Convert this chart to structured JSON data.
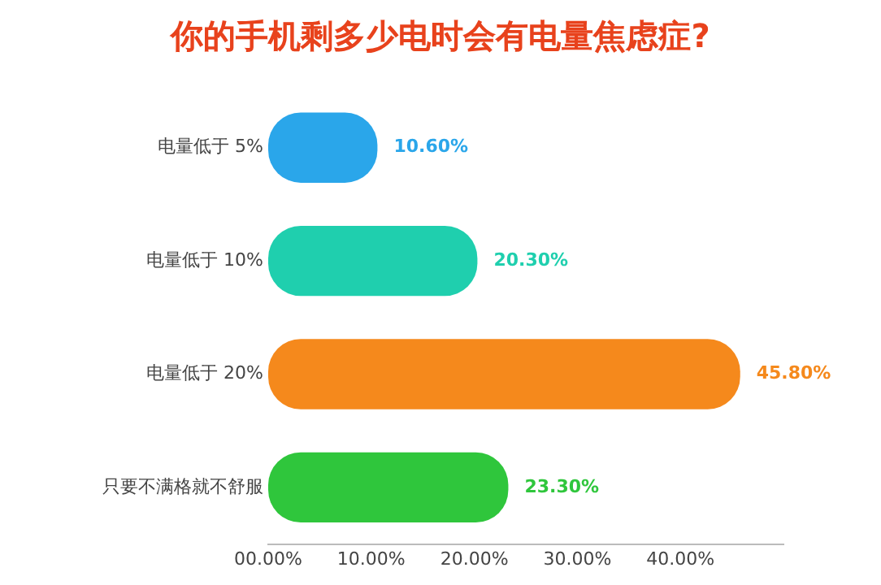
{
  "chart_data": {
    "type": "bar",
    "orientation": "horizontal",
    "title": "你的手机剩多少电时会有电量焦虑症?",
    "categories": [
      "电量低于 5%",
      "电量低于 10%",
      "电量低于 20%",
      "只要不满格就不舒服"
    ],
    "values": [
      10.6,
      20.3,
      45.8,
      23.3
    ],
    "colors": [
      "#2aa6ea",
      "#1fcfae",
      "#f5891c",
      "#2fc63c"
    ],
    "value_labels": [
      "10.60%",
      "20.30%",
      "45.80%",
      "23.30%"
    ],
    "xlim": [
      0,
      50
    ],
    "xticks": [
      {
        "value": 0,
        "label": "00.00%"
      },
      {
        "value": 10,
        "label": "10.00%"
      },
      {
        "value": 20,
        "label": "20.00%"
      },
      {
        "value": 30,
        "label": "30.00%"
      },
      {
        "value": 40,
        "label": "40.00%"
      }
    ],
    "grid": false,
    "legend": false
  }
}
